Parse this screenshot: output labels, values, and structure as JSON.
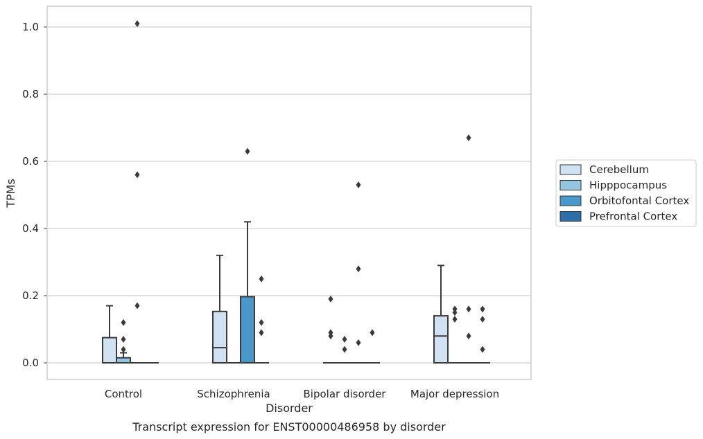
{
  "chart_data": {
    "type": "box",
    "title": "",
    "caption": "Transcript expression for ENST00000486958 by disorder",
    "xlabel": "Disorder",
    "ylabel": "TPMs",
    "ylim": [
      -0.05,
      1.06
    ],
    "yticks": [
      0.0,
      0.2,
      0.4,
      0.6,
      0.8,
      1.0
    ],
    "ytick_labels": [
      "0.0",
      "0.2",
      "0.4",
      "0.6",
      "0.8",
      "1.0"
    ],
    "grid": "horizontal",
    "legend_position": "right",
    "categories": [
      "Control",
      "Schizophrenia",
      "Bipolar disorder",
      "Major depression"
    ],
    "series": [
      {
        "name": "Cerebellum",
        "color": "#d0e1f2",
        "boxes": [
          {
            "q1": 0.0,
            "median": 0.0,
            "q3": 0.075,
            "whisker_low": 0.0,
            "whisker_high": 0.17,
            "outliers": []
          },
          {
            "q1": 0.0,
            "median": 0.045,
            "q3": 0.153,
            "whisker_low": 0.0,
            "whisker_high": 0.32,
            "outliers": []
          },
          {
            "q1": 0.0,
            "median": 0.0,
            "q3": 0.0,
            "whisker_low": 0.0,
            "whisker_high": 0.0,
            "outliers": [
              0.19,
              0.09,
              0.08
            ]
          },
          {
            "q1": 0.0,
            "median": 0.08,
            "q3": 0.14,
            "whisker_low": 0.0,
            "whisker_high": 0.29,
            "outliers": []
          }
        ]
      },
      {
        "name": "Hipppocampus",
        "color": "#94c4df",
        "boxes": [
          {
            "q1": 0.0,
            "median": 0.0,
            "q3": 0.015,
            "whisker_low": 0.0,
            "whisker_high": 0.03,
            "outliers": [
              0.12,
              0.07,
              0.04
            ]
          },
          {
            "q1": 0.0,
            "median": 0.0,
            "q3": 0.0,
            "whisker_low": 0.0,
            "whisker_high": 0.0,
            "outliers": []
          },
          {
            "q1": 0.0,
            "median": 0.0,
            "q3": 0.0,
            "whisker_low": 0.0,
            "whisker_high": 0.0,
            "outliers": [
              0.07,
              0.04
            ]
          },
          {
            "q1": 0.0,
            "median": 0.0,
            "q3": 0.0,
            "whisker_low": 0.0,
            "whisker_high": 0.0,
            "outliers": [
              0.16,
              0.15,
              0.13
            ]
          }
        ]
      },
      {
        "name": "Orbitofontal Cortex",
        "color": "#4a98c9",
        "boxes": [
          {
            "q1": 0.0,
            "median": 0.0,
            "q3": 0.0,
            "whisker_low": 0.0,
            "whisker_high": 0.0,
            "outliers": [
              1.01,
              0.56,
              0.17
            ]
          },
          {
            "q1": 0.0,
            "median": 0.0,
            "q3": 0.197,
            "whisker_low": 0.0,
            "whisker_high": 0.42,
            "outliers": [
              0.63
            ]
          },
          {
            "q1": 0.0,
            "median": 0.0,
            "q3": 0.0,
            "whisker_low": 0.0,
            "whisker_high": 0.0,
            "outliers": [
              0.53,
              0.28,
              0.06
            ]
          },
          {
            "q1": 0.0,
            "median": 0.0,
            "q3": 0.0,
            "whisker_low": 0.0,
            "whisker_high": 0.0,
            "outliers": [
              0.67,
              0.16,
              0.08
            ]
          }
        ]
      },
      {
        "name": "Prefrontal Cortex",
        "color": "#2b6ea8",
        "boxes": [
          {
            "q1": 0.0,
            "median": 0.0,
            "q3": 0.0,
            "whisker_low": 0.0,
            "whisker_high": 0.0,
            "outliers": []
          },
          {
            "q1": 0.0,
            "median": 0.0,
            "q3": 0.0,
            "whisker_low": 0.0,
            "whisker_high": 0.0,
            "outliers": [
              0.25,
              0.12,
              0.09
            ]
          },
          {
            "q1": 0.0,
            "median": 0.0,
            "q3": 0.0,
            "whisker_low": 0.0,
            "whisker_high": 0.0,
            "outliers": [
              0.09
            ]
          },
          {
            "q1": 0.0,
            "median": 0.0,
            "q3": 0.0,
            "whisker_low": 0.0,
            "whisker_high": 0.0,
            "outliers": [
              0.16,
              0.13,
              0.04
            ]
          }
        ]
      }
    ]
  }
}
